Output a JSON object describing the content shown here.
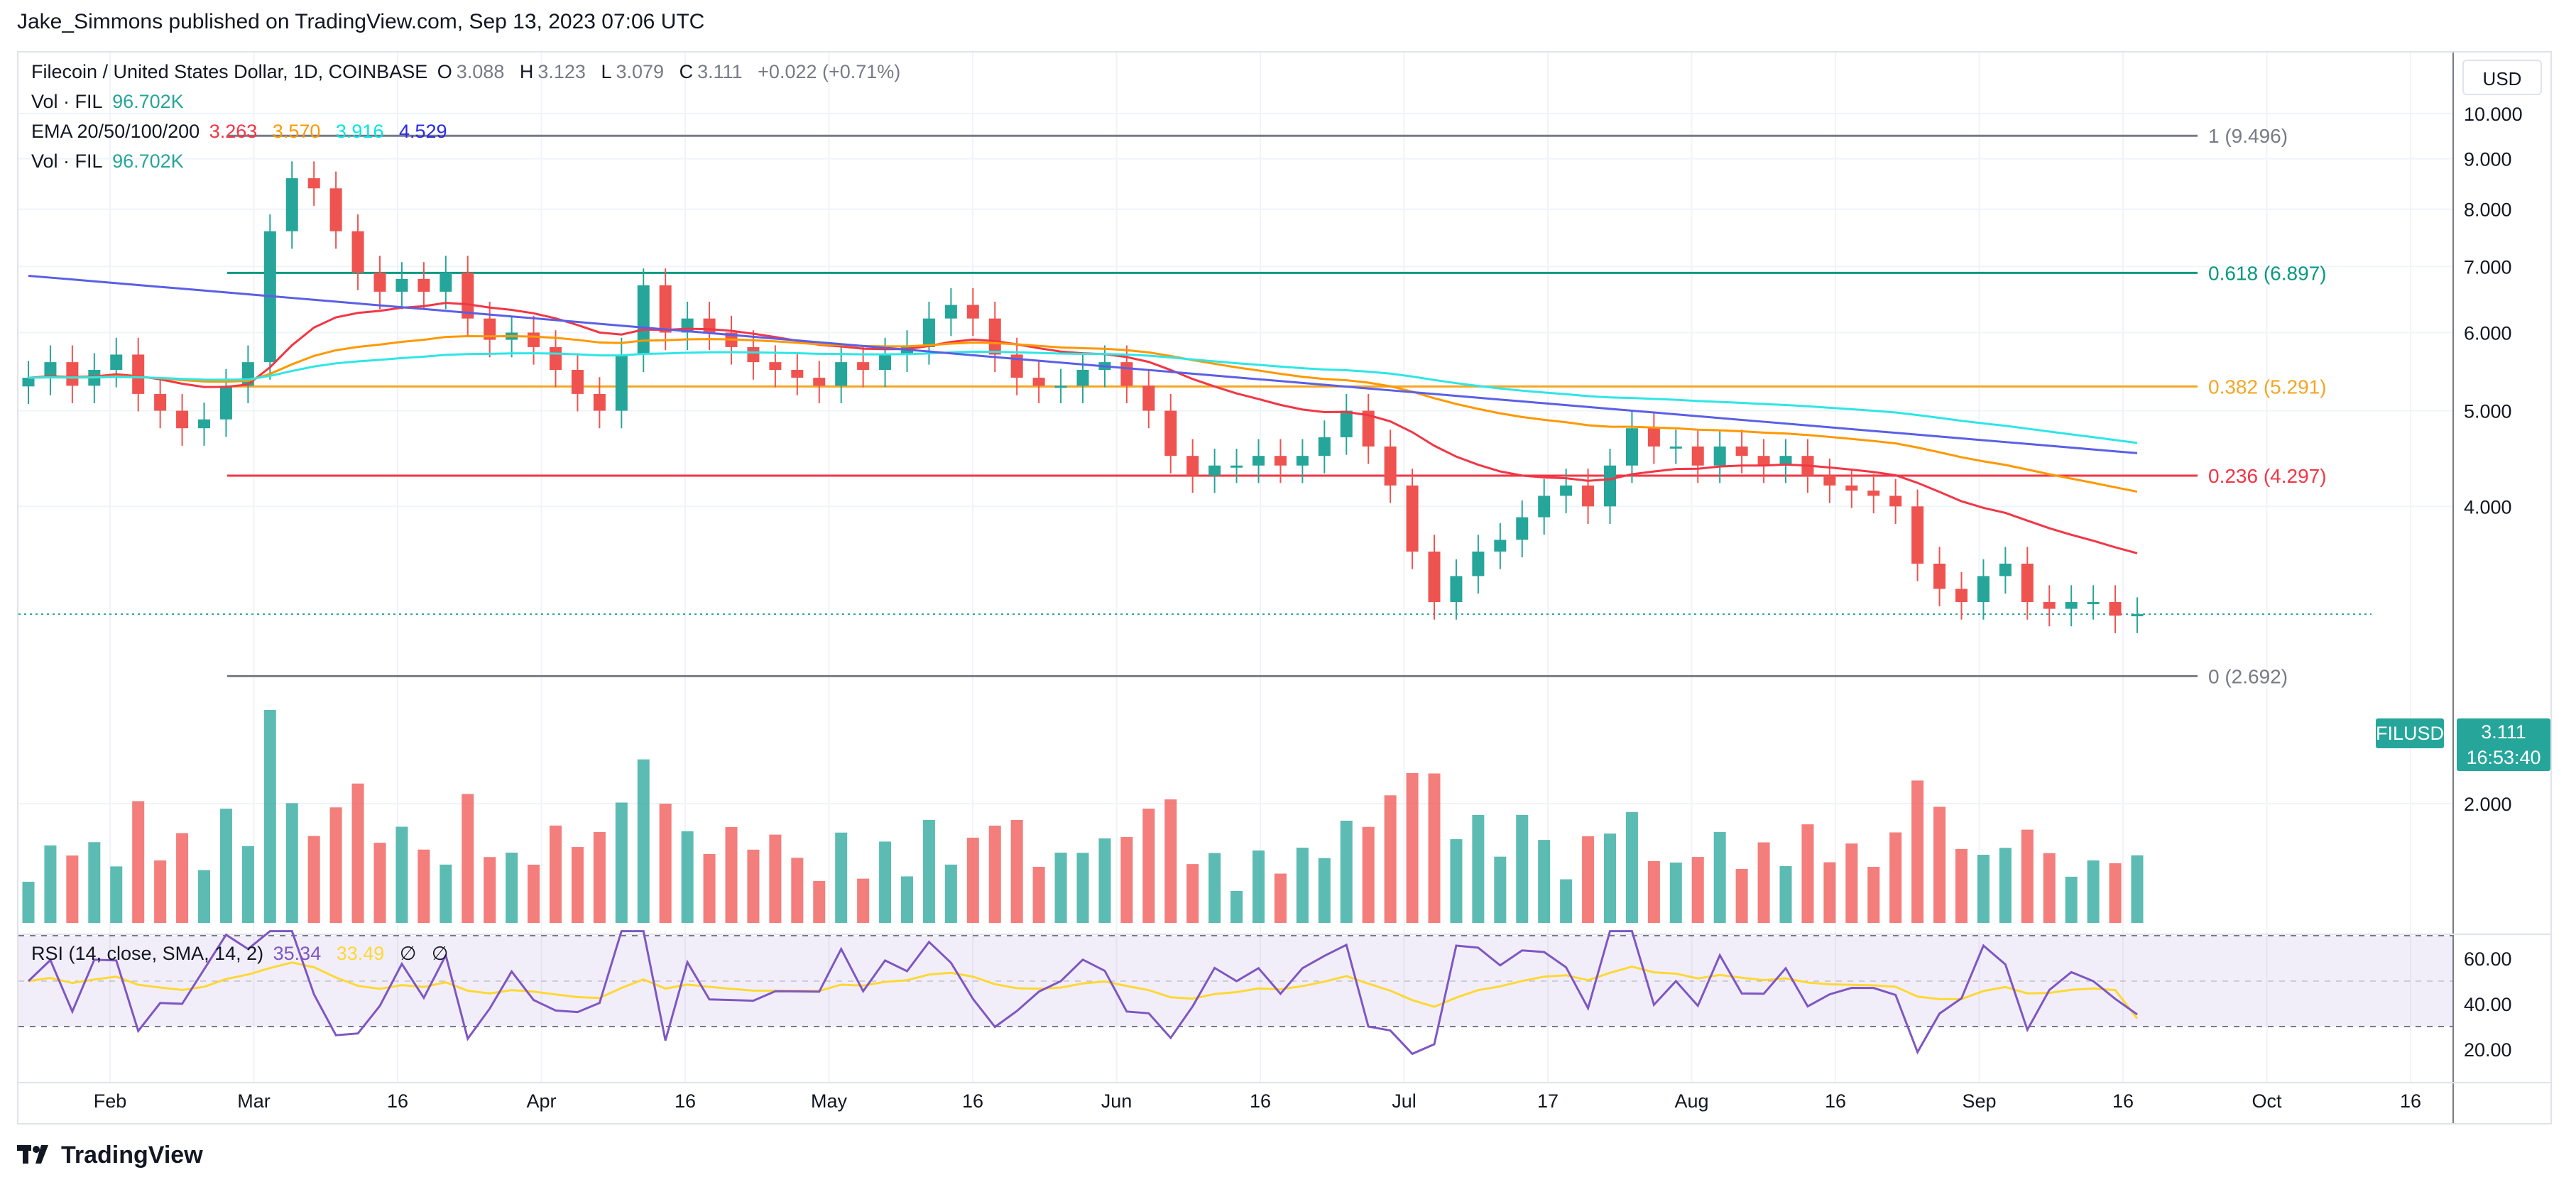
{
  "header": {
    "published": "Jake_Simmons published on TradingView.com, Sep 13, 2023 07:06 UTC"
  },
  "legend": {
    "symbol": "Filecoin / United States Dollar, 1D, COINBASE",
    "o_label": "O",
    "o_value": "3.088",
    "h_label": "H",
    "h_value": "3.123",
    "l_label": "L",
    "l_value": "3.079",
    "c_label": "C",
    "c_value": "3.111",
    "change": "+0.022 (+0.71%)",
    "vol_label": "Vol · FIL",
    "vol_value": "96.702K",
    "ema_label": "EMA 20/50/100/200",
    "ema20": "3.263",
    "ema50": "3.570",
    "ema100": "3.916",
    "ema200": "4.529",
    "vol2_label": "Vol · FIL",
    "vol2_value": "96.702K",
    "rsi_label": "RSI (14, close, SMA, 14, 2)",
    "rsi_value": "35.34",
    "rsi_sma": "33.49",
    "rsi_empty1": "∅",
    "rsi_empty2": "∅"
  },
  "currency_button": "USD",
  "price_tag": {
    "symbol": "FILUSD",
    "price": "3.111",
    "countdown": "16:53:40"
  },
  "footer": {
    "brand": "TradingView"
  },
  "colors": {
    "up": "#26a69a",
    "down": "#ef5350",
    "ema20": "#f23645",
    "ema50": "#ff9800",
    "ema100": "#2ee6e6",
    "ema200": "#5b5fe6",
    "rsi": "#7e57c2",
    "rsi_sma": "#fdd835"
  },
  "chart_data": {
    "type": "candlestick",
    "title": "Filecoin / United States Dollar, 1D, COINBASE",
    "x_ticks": [
      "Feb",
      "Mar",
      "16",
      "Apr",
      "16",
      "May",
      "16",
      "Jun",
      "16",
      "Jul",
      "17",
      "Aug",
      "16",
      "Sep",
      "16",
      "Oct",
      "16"
    ],
    "price_axis": {
      "ticks": [
        "10.000",
        "9.000",
        "8.000",
        "7.000",
        "6.000",
        "5.000",
        "4.000",
        "2.000"
      ],
      "scale": "log"
    },
    "rsi_axis": {
      "ticks": [
        "60.00",
        "40.00",
        "20.00"
      ],
      "bands": [
        30,
        70
      ]
    },
    "fib_levels": [
      {
        "label": "1 (9.496)",
        "value": 9.496
      },
      {
        "label": "0.618 (6.897)",
        "value": 6.897
      },
      {
        "label": "0.382 (5.291)",
        "value": 5.291
      },
      {
        "label": "0.236 (4.297)",
        "value": 4.297
      },
      {
        "label": "0 (2.692)",
        "value": 2.692
      }
    ],
    "series_close": [
      5.4,
      5.6,
      5.3,
      5.5,
      5.7,
      5.2,
      5.0,
      4.8,
      4.9,
      5.3,
      5.6,
      7.6,
      8.6,
      8.4,
      7.6,
      6.9,
      6.6,
      6.8,
      6.6,
      6.9,
      6.2,
      5.9,
      6.0,
      5.8,
      5.5,
      5.2,
      5.0,
      5.7,
      6.7,
      6.0,
      6.2,
      6.0,
      5.8,
      5.6,
      5.5,
      5.4,
      5.3,
      5.6,
      5.5,
      5.7,
      5.8,
      6.2,
      6.4,
      6.2,
      5.7,
      5.4,
      5.3,
      5.3,
      5.5,
      5.6,
      5.3,
      5.0,
      4.5,
      4.3,
      4.4,
      4.4,
      4.5,
      4.4,
      4.5,
      4.7,
      5.0,
      4.6,
      4.2,
      3.6,
      3.2,
      3.4,
      3.6,
      3.7,
      3.9,
      4.1,
      4.2,
      4.0,
      4.4,
      4.8,
      4.6,
      4.6,
      4.4,
      4.6,
      4.5,
      4.4,
      4.5,
      4.3,
      4.2,
      4.15,
      4.1,
      4.0,
      3.5,
      3.3,
      3.2,
      3.4,
      3.5,
      3.2,
      3.15,
      3.2,
      3.2,
      3.1,
      3.111
    ],
    "ema20": 3.263,
    "ema50": 3.57,
    "ema100": 3.916,
    "ema200": 4.529,
    "rsi": 35.34,
    "rsi_sma": 33.49,
    "last_price": 3.111
  }
}
